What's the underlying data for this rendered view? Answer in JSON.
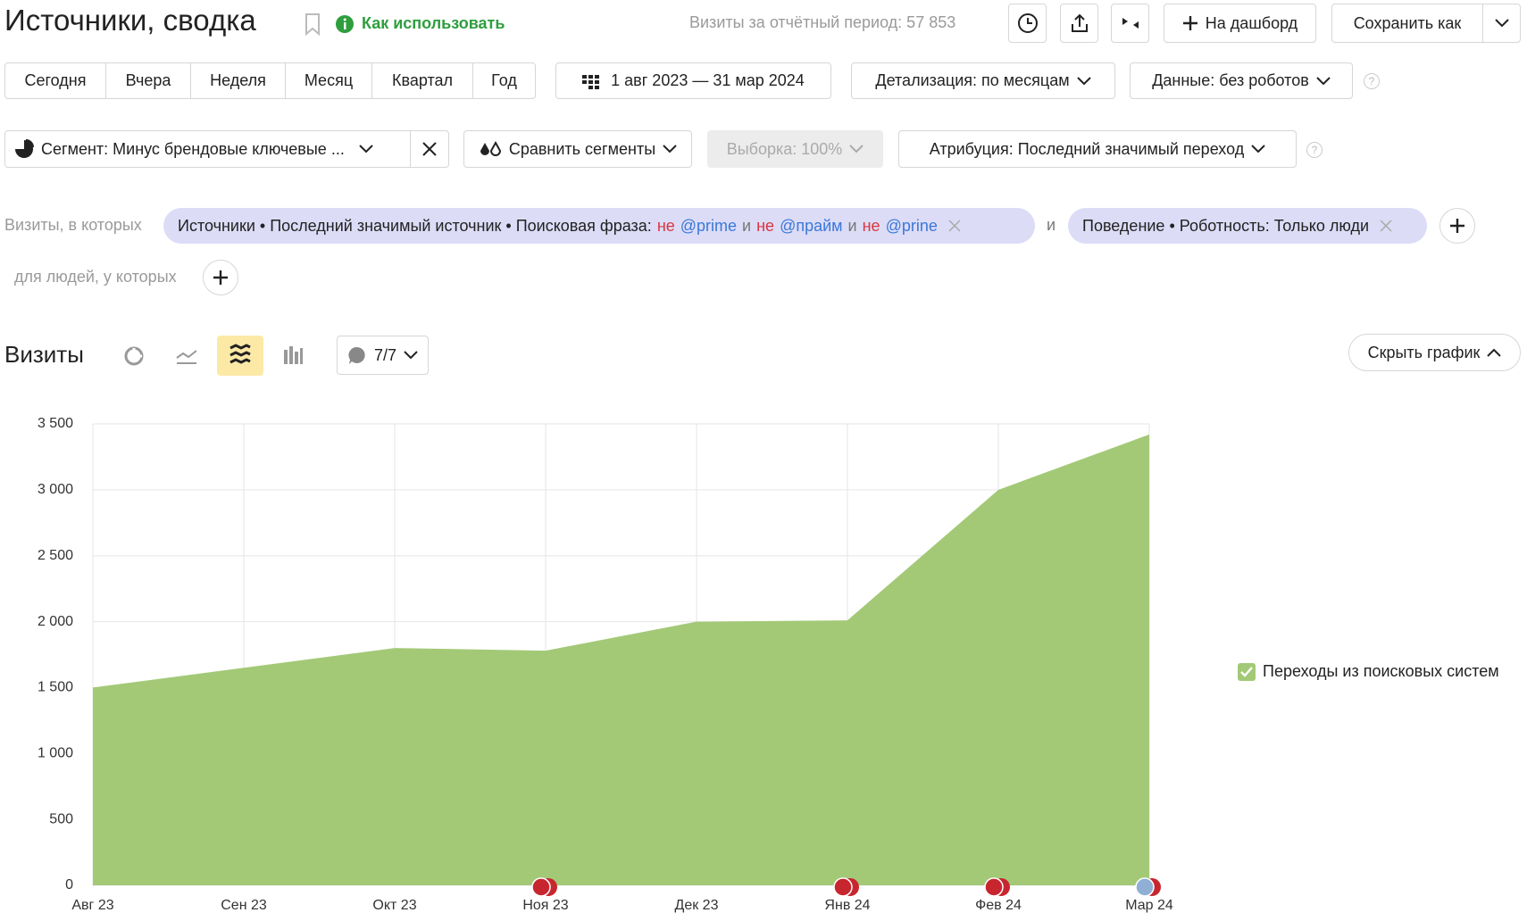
{
  "header": {
    "title": "Источники, сводка",
    "help_link": "Как использовать",
    "total_visits": "Визиты за отчётный период: 57 853",
    "add_to_dashboard": "На дашборд",
    "save_as": "Сохранить как"
  },
  "periods": [
    "Сегодня",
    "Вчера",
    "Неделя",
    "Месяц",
    "Квартал",
    "Год"
  ],
  "date_range": "1 авг 2023 — 31 мар 2024",
  "detail": "Детализация: по месяцам",
  "data_filter": "Данные: без роботов",
  "segment": "Сегмент: Минус брендовые ключевые ...",
  "compare": "Сравнить сегменты",
  "sample": "Выборка: 100%",
  "attribution": "Атрибуция: Последний значимый переход",
  "filters": {
    "label": "Визиты, в которых",
    "joiner": "и",
    "chips": [
      {
        "prefix": "Источники • Последний значимый источник • Поисковая фраза:",
        "conditions": [
          {
            "op": "не",
            "value": "@prime"
          },
          {
            "op": "не",
            "value": "@прайм"
          },
          {
            "op": "не",
            "value": "@prine"
          }
        ]
      },
      {
        "prefix": "Поведение • Роботность: Только люди"
      }
    ]
  },
  "people_label": "для людей, у которых",
  "chart_panel": {
    "title": "Визиты",
    "series_count": "7/7",
    "hide": "Скрыть график"
  },
  "chart_data": {
    "type": "area",
    "categories": [
      "Авг 23",
      "Сен 23",
      "Окт 23",
      "Ноя 23",
      "Дек 23",
      "Янв 24",
      "Фев 24",
      "Мар 24"
    ],
    "series": [
      {
        "name": "Переходы из поисковых систем",
        "color": "#a3c977",
        "values": [
          1500,
          1650,
          1800,
          1780,
          2000,
          2010,
          3000,
          3420
        ]
      }
    ],
    "ylim": [
      0,
      3500
    ],
    "yticks": [
      0,
      500,
      {
        "value": 1000,
        "label": "1 000"
      },
      {
        "value": 1500,
        "label": "1 500"
      },
      {
        "value": 2000,
        "label": "2 000"
      },
      {
        "value": 2500,
        "label": "2 500"
      },
      {
        "value": 3000,
        "label": "3 000"
      },
      {
        "value": 3500,
        "label": "3 500"
      }
    ],
    "grid": true
  }
}
